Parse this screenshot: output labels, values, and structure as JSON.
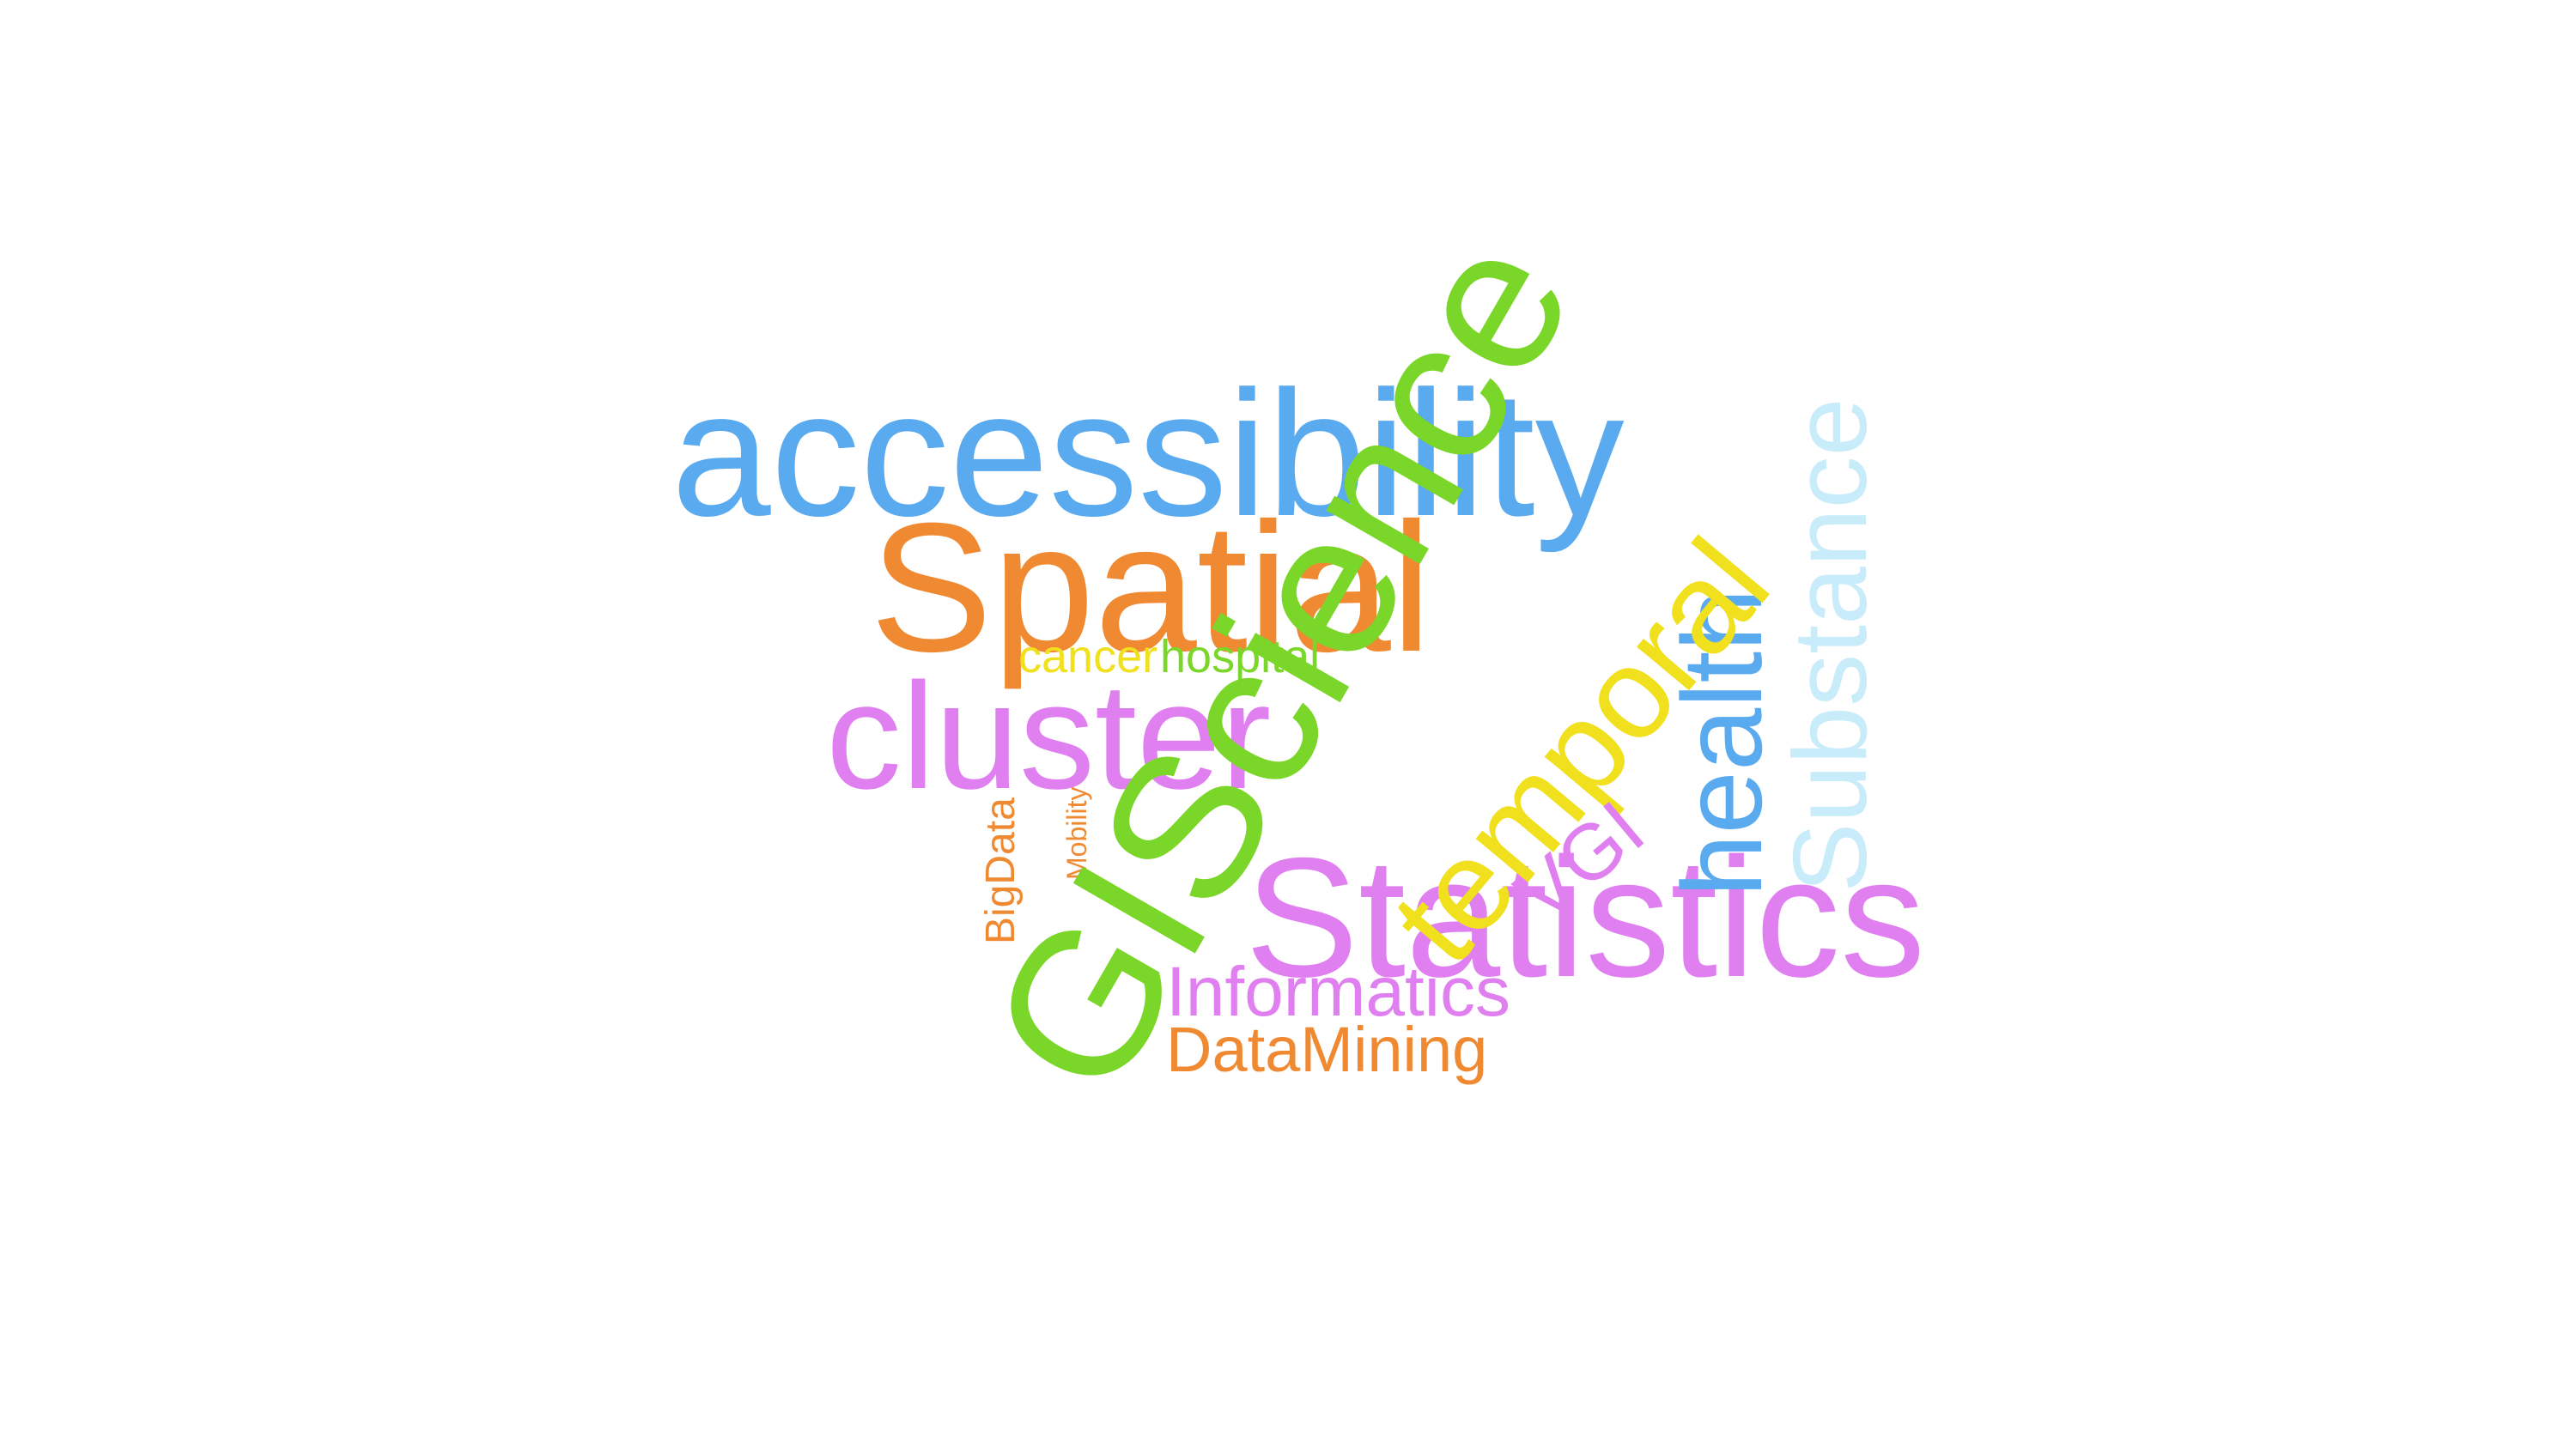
{
  "words": [
    {
      "key": "accessibility",
      "text": "accessibility",
      "color": "#5aaaf0"
    },
    {
      "key": "spatial",
      "text": "Spatial",
      "color": "#f08a32"
    },
    {
      "key": "cluster",
      "text": "cluster",
      "color": "#e080f0"
    },
    {
      "key": "cancer",
      "text": "cancer",
      "color": "#f0e01e"
    },
    {
      "key": "hospital",
      "text": "hospital",
      "color": "#7ad628"
    },
    {
      "key": "statistics",
      "text": "Statistics",
      "color": "#e080f0"
    },
    {
      "key": "informatics",
      "text": "Informatics",
      "color": "#e080f0"
    },
    {
      "key": "datamining",
      "text": "DataMining",
      "color": "#f08a32"
    },
    {
      "key": "health",
      "text": "health",
      "color": "#5aaaf0"
    },
    {
      "key": "substance",
      "text": "Substance",
      "color": "#c8ecfa"
    },
    {
      "key": "bigdata",
      "text": "BigData",
      "color": "#f08a32"
    },
    {
      "key": "mobility",
      "text": "Mobility",
      "color": "#f08a32"
    },
    {
      "key": "giscience",
      "text": "GIScience",
      "color": "#7ad628"
    },
    {
      "key": "temporal",
      "text": "temporal",
      "color": "#f0e01e"
    },
    {
      "key": "vgi",
      "text": "VGI",
      "color": "#e080f0"
    }
  ]
}
